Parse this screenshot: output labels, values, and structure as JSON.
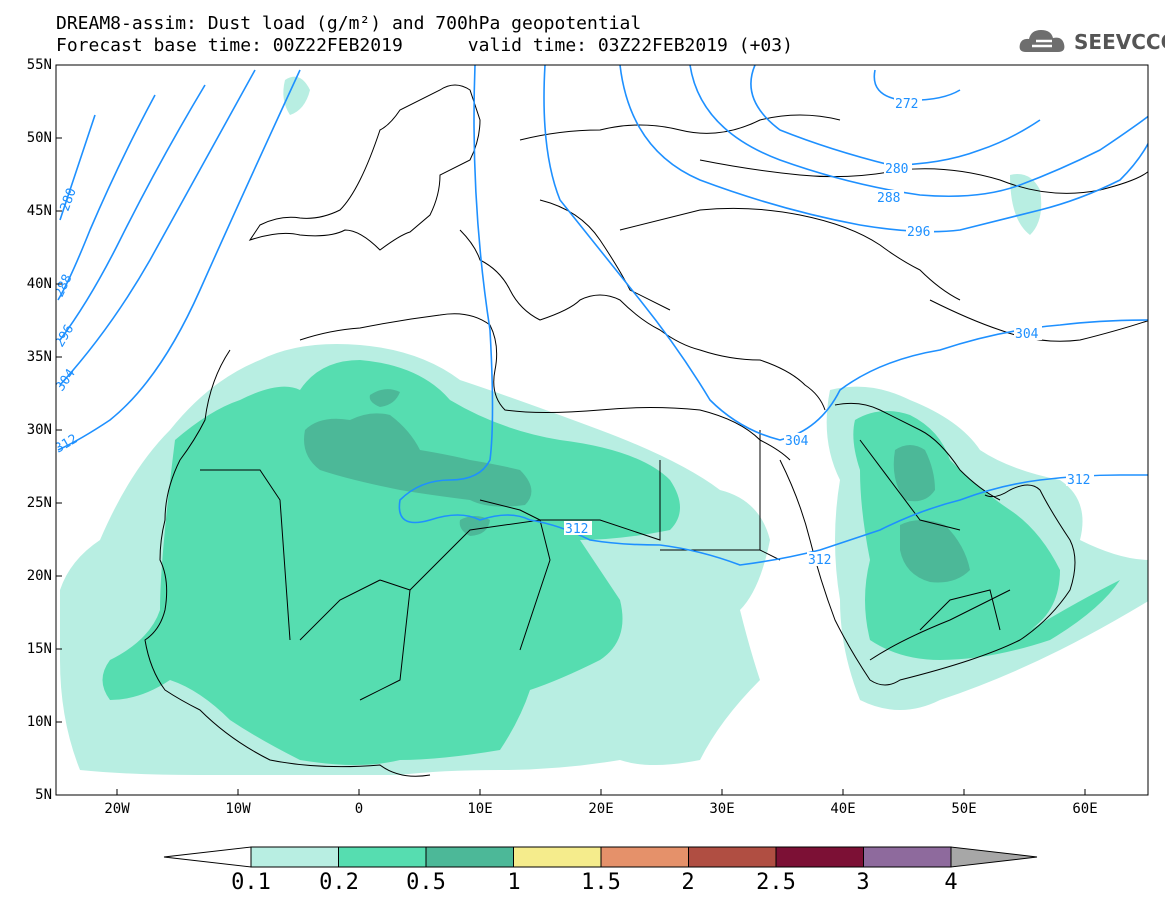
{
  "title": {
    "line1": "DREAM8-assim: Dust load (g/m²) and 700hPa geopotential",
    "line2": "Forecast base time: 00Z22FEB2019      valid time: 03Z22FEB2019 (+03)"
  },
  "logo": {
    "text": "SEEVCCC",
    "icon": "cloud-icon"
  },
  "axes": {
    "lat_labels": [
      "55N",
      "50N",
      "45N",
      "40N",
      "35N",
      "30N",
      "25N",
      "20N",
      "15N",
      "10N",
      "5N"
    ],
    "lon_labels": [
      "20W",
      "10W",
      "0",
      "10E",
      "20E",
      "30E",
      "40E",
      "50E",
      "60E"
    ]
  },
  "contour_labels": [
    "272",
    "280",
    "288",
    "296",
    "304",
    "304",
    "312",
    "312",
    "312",
    "280",
    "288",
    "296",
    "304",
    "312"
  ],
  "colorbar": {
    "levels": [
      "0.1",
      "0.2",
      "0.5",
      "1",
      "1.5",
      "2",
      "2.5",
      "3",
      "4"
    ],
    "colors": [
      "#ffffff",
      "#b8eee2",
      "#56ddb0",
      "#4cb898",
      "#f5ec8c",
      "#e5916a",
      "#b04e42",
      "#7c1035",
      "#8e6a9d",
      "#a7a7a7"
    ]
  },
  "map_colors": {
    "coast": "#000000",
    "contour": "#1e90ff",
    "dust_low": "#b8eee2",
    "dust_mid": "#56ddb0",
    "dust_high": "#4cb898"
  }
}
